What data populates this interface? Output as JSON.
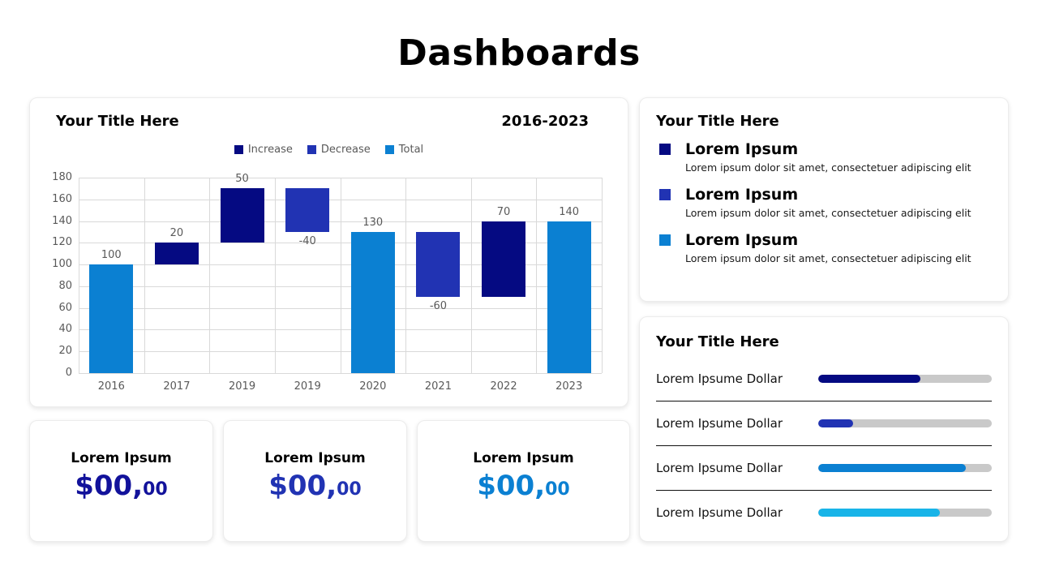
{
  "page": {
    "title": "Dashboards"
  },
  "palette": {
    "increase_navy": "#050a82",
    "decrease_royal": "#2133b3",
    "total_blue": "#0b80d2",
    "cyan": "#18b4e8",
    "track_gray": "#c9c9c9",
    "axis_text": "#595959",
    "grid": "#d9d9d9"
  },
  "chart_card": {
    "title": "Your Title Here",
    "period": "2016-2023",
    "chart_data": {
      "type": "bar",
      "subtype": "waterfall",
      "title": "Your Title Here",
      "xlabel": "",
      "ylabel": "",
      "categories": [
        "2016",
        "2017",
        "2019",
        "2019",
        "2020",
        "2021",
        "2022",
        "2023"
      ],
      "bars": [
        {
          "category": "2016",
          "series": "Total",
          "value": 100,
          "start": 0,
          "end": 100,
          "label": "100",
          "label_position": "above",
          "color": "#0b80d2"
        },
        {
          "category": "2017",
          "series": "Increase",
          "value": 20,
          "start": 100,
          "end": 120,
          "label": "20",
          "label_position": "above",
          "color": "#050a82"
        },
        {
          "category": "2019",
          "series": "Increase",
          "value": 50,
          "start": 120,
          "end": 170,
          "label": "50",
          "label_position": "above",
          "color": "#050a82"
        },
        {
          "category": "2019",
          "series": "Decrease",
          "value": -40,
          "start": 130,
          "end": 170,
          "label": "-40",
          "label_position": "below",
          "color": "#2133b3"
        },
        {
          "category": "2020",
          "series": "Total",
          "value": 130,
          "start": 0,
          "end": 130,
          "label": "130",
          "label_position": "above",
          "color": "#0b80d2"
        },
        {
          "category": "2021",
          "series": "Decrease",
          "value": -60,
          "start": 70,
          "end": 130,
          "label": "-60",
          "label_position": "below",
          "color": "#2133b3"
        },
        {
          "category": "2022",
          "series": "Increase",
          "value": 70,
          "start": 70,
          "end": 140,
          "label": "70",
          "label_position": "above",
          "color": "#050a82"
        },
        {
          "category": "2023",
          "series": "Total",
          "value": 140,
          "start": 0,
          "end": 140,
          "label": "140",
          "label_position": "above",
          "color": "#0b80d2"
        }
      ],
      "legend": [
        {
          "name": "Increase",
          "color": "#050a82"
        },
        {
          "name": "Decrease",
          "color": "#2133b3"
        },
        {
          "name": "Total",
          "color": "#0b80d2"
        }
      ],
      "legend_position": "top",
      "grid": true,
      "y_axis": {
        "min": 0,
        "max": 180,
        "step": 20,
        "ticks": [
          0,
          20,
          40,
          60,
          80,
          100,
          120,
          140,
          160,
          180
        ]
      }
    }
  },
  "kpi_cards": [
    {
      "label": "Lorem Ipsum",
      "value_main": "$00,",
      "value_sub": "00",
      "color": "#12129b"
    },
    {
      "label": "Lorem Ipsum",
      "value_main": "$00,",
      "value_sub": "00",
      "color": "#2133b3"
    },
    {
      "label": "Lorem Ipsum",
      "value_main": "$00,",
      "value_sub": "00",
      "color": "#0b80d2"
    }
  ],
  "legend_card": {
    "title": "Your Title Here",
    "items": [
      {
        "label": "Lorem Ipsum",
        "description": "Lorem ipsum dolor sit amet, consectetuer adipiscing elit",
        "color": "#050a82"
      },
      {
        "label": "Lorem Ipsum",
        "description": "Lorem ipsum dolor sit amet, consectetuer adipiscing elit",
        "color": "#2133b3"
      },
      {
        "label": "Lorem Ipsum",
        "description": "Lorem ipsum dolor sit amet, consectetuer adipiscing elit",
        "color": "#0b80d2"
      }
    ]
  },
  "progress_card": {
    "title": "Your Title Here",
    "items": [
      {
        "label": "Lorem Ipsume Dollar",
        "percent": 59,
        "color": "#050a82"
      },
      {
        "label": "Lorem Ipsume Dollar",
        "percent": 20,
        "color": "#2133b3"
      },
      {
        "label": "Lorem Ipsume Dollar",
        "percent": 85,
        "color": "#0b80d2"
      },
      {
        "label": "Lorem Ipsume Dollar",
        "percent": 70,
        "color": "#18b4e8"
      }
    ]
  }
}
